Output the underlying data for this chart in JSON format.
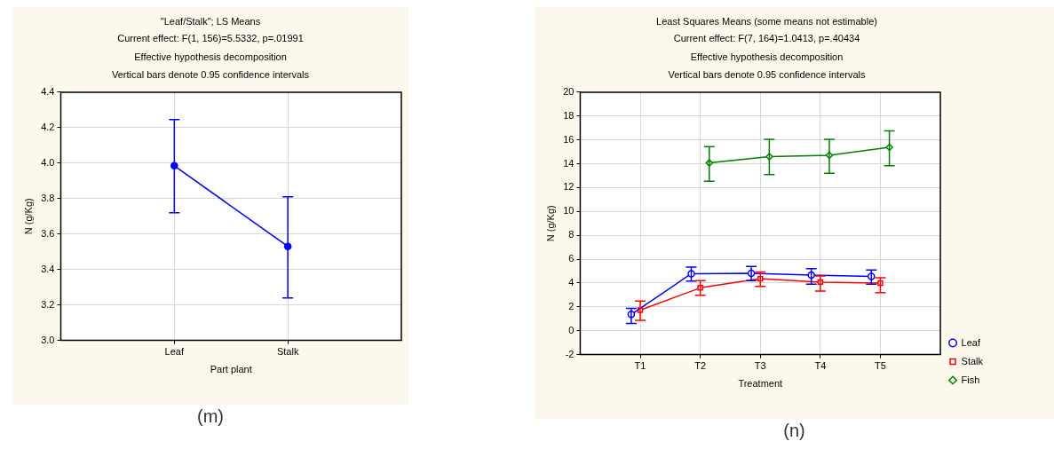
{
  "chart_data": [
    {
      "type": "line",
      "title": "\"Leaf/Stalk\"; LS Means",
      "subtitle": "Current effect: F(1, 156)=5.5332, p=.01991\nEffective hypothesis decomposition\nVertical bars denote 0.95 confidence intervals",
      "xlabel": "Part plant",
      "ylabel": "N (g/Kg)",
      "categories": [
        "Leaf",
        "Stalk"
      ],
      "series": [
        {
          "color": "#0000ff",
          "values": [
            3.985,
            3.53
          ],
          "errors": [
            [
              3.72,
              4.245
            ],
            [
              3.24,
              3.81
            ]
          ],
          "marker": "circle"
        }
      ],
      "ylim": [
        3.0,
        4.4
      ],
      "yticks": [
        {
          "value": 3,
          "label": "3.0"
        },
        3.2,
        3.4,
        3.6,
        3.8,
        {
          "value": 4,
          "label": "4.0"
        },
        4.2,
        4.4
      ],
      "grid": true,
      "legend": false,
      "line_style": "solid",
      "annotations": [
        "(m)"
      ]
    },
    {
      "type": "line",
      "title": "Least Squares Means (some means not estimable)",
      "subtitle": "Current effect: F(7, 164)=1.0413, p=.40434\nEffective hypothesis decomposition\nVertical bars denote 0.95 confidence intervals",
      "xlabel": "Treatment",
      "ylabel": "N (g/Kg)",
      "categories": [
        "T1",
        "T2",
        "T3",
        "T4",
        "T5"
      ],
      "series": [
        {
          "name": "Leaf",
          "color": "#0000ff",
          "marker": "circle",
          "values": [
            1.37,
            4.78,
            4.81,
            4.67,
            4.56
          ],
          "errors": [
            [
              0.62,
              1.87
            ],
            [
              4.17,
              5.34
            ],
            [
              4.2,
              5.4
            ],
            [
              3.9,
              5.2
            ],
            [
              3.9,
              5.1
            ]
          ]
        },
        {
          "name": "Stalk",
          "color": "#ff0000",
          "marker": "square",
          "values": [
            1.73,
            3.6,
            4.36,
            4.08,
            4.0
          ],
          "errors": [
            [
              0.87,
              2.49
            ],
            [
              2.97,
              4.2
            ],
            [
              3.72,
              4.92
            ],
            [
              3.33,
              4.59
            ],
            [
              3.19,
              4.45
            ]
          ]
        },
        {
          "name": "Fish",
          "color": "#008000",
          "marker": "diamond",
          "values": [
            null,
            14.07,
            14.6,
            14.71,
            15.38
          ],
          "errors": [
            null,
            [
              12.53,
              15.44
            ],
            [
              13.1,
              16.05
            ],
            [
              13.2,
              16.05
            ],
            [
              13.83,
              16.76
            ]
          ]
        }
      ],
      "ylim": [
        -2,
        20
      ],
      "yticks": [
        -2,
        0,
        2,
        4,
        6,
        8,
        10,
        12,
        14,
        16,
        18,
        20
      ],
      "grid": true,
      "legend": "bottom right",
      "line_style": "solid",
      "annotations": [
        "(n)"
      ]
    }
  ]
}
